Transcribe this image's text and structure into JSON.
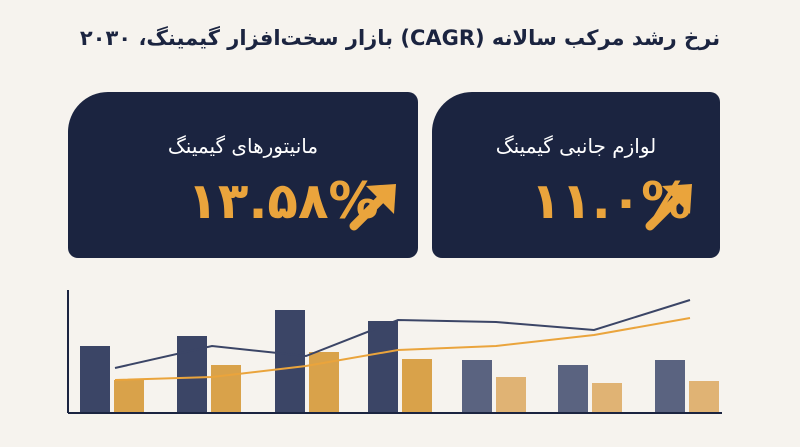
{
  "header": {
    "title": "نرخ رشد مرکب سالانه (CAGR) بازار سخت‌افزار گیمینگ، ۲۰۳۰"
  },
  "cards": [
    {
      "label": "مانیتورهای گیمینگ",
      "value": "۱۳.۵۸%"
    },
    {
      "label": "لوازم جانبی گیمینگ",
      "value": "۱۱.۰%"
    }
  ]
}
